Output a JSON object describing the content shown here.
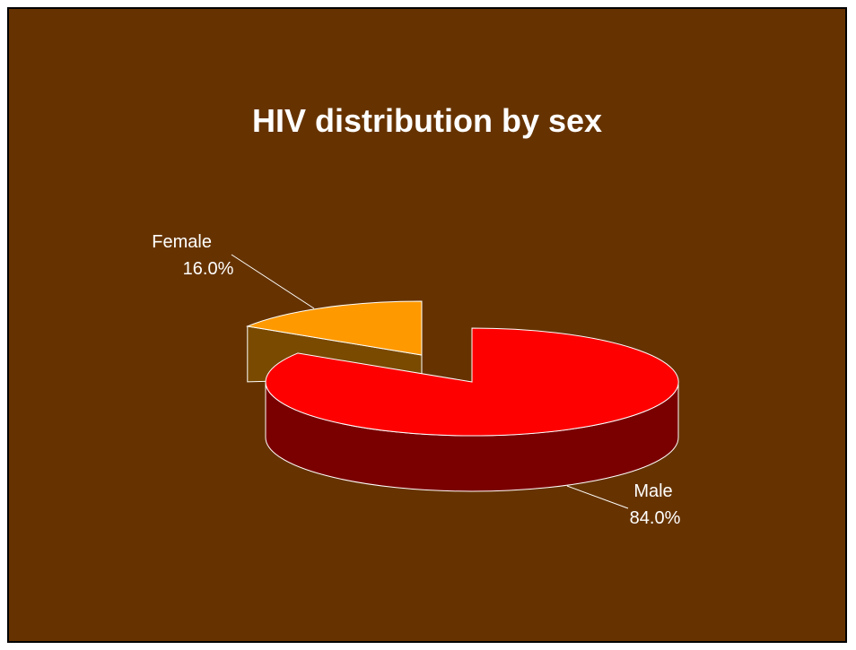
{
  "chart_data": {
    "type": "pie",
    "title": "HIV distribution by sex",
    "slices": [
      {
        "label": "Male",
        "value_label": "84.0%",
        "value": 84.0,
        "color": "#ff0000",
        "side_color": "#7a0000"
      },
      {
        "label": "Female",
        "value_label": "16.0%",
        "value": 16.0,
        "color": "#ff9900",
        "side_color": "#7a4a00"
      }
    ],
    "background_color": "#663300",
    "edge_color": "#ffffff",
    "three_d": true,
    "exploded": true
  }
}
